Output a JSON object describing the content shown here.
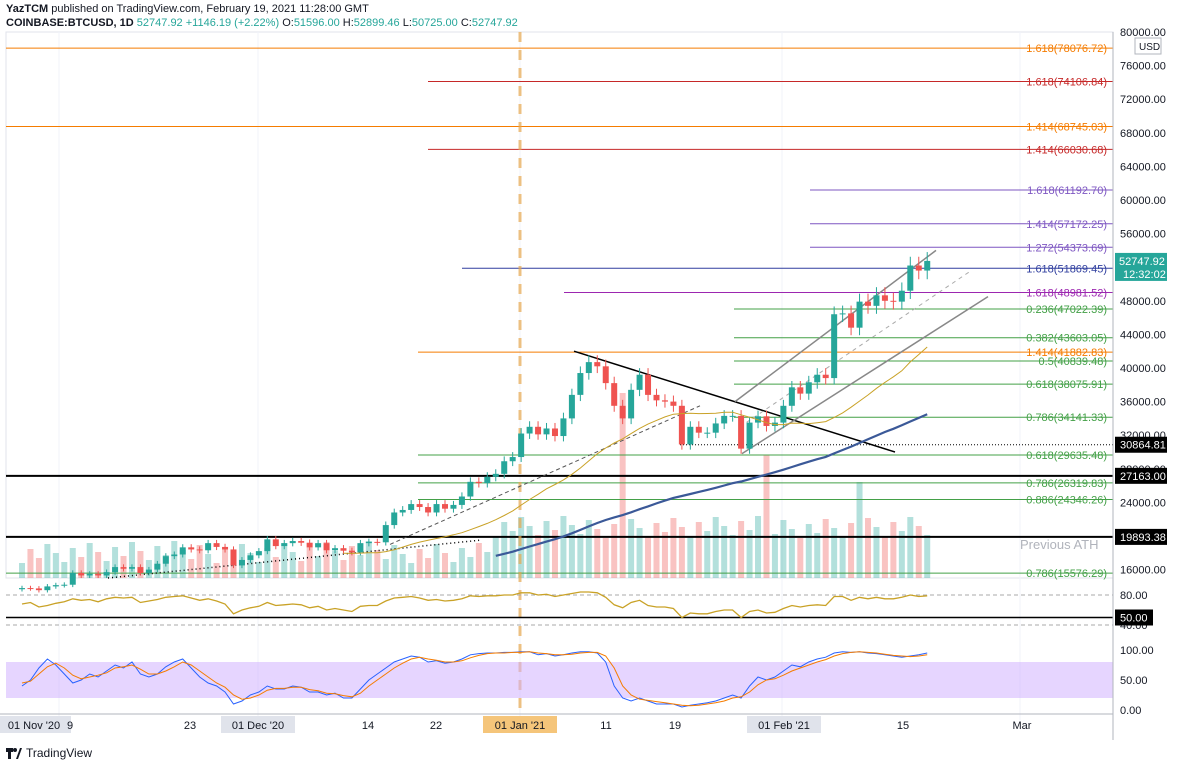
{
  "header": {
    "publisher": "YazTCM",
    "published_text": " published on TradingView.com, February 19, 2021 11:28:00 GMT",
    "symbol": "COINBASE:BTCUSD, 1D",
    "price": "52747.92",
    "change": "+1146.19 (+2.22%)",
    "ohlc_o": "51596.00",
    "ohlc_h": "52899.46",
    "ohlc_l": "50725.00",
    "ohlc_c": "52747.92"
  },
  "brand": "TradingView",
  "annotation_prev_ath": "Previous ATH",
  "colors": {
    "up": "#26a69a",
    "down": "#ef5350",
    "orange": "#f57c00",
    "purple": "#9c27b0",
    "green": "#4caf50",
    "red": "#c62828",
    "stoch": "#d1b3ff"
  },
  "chart_data": {
    "type": "candlestick",
    "currency": "USD",
    "y_axis_ticks": [
      "80000.00",
      "76000.00",
      "72000.00",
      "68000.00",
      "64000.00",
      "60000.00",
      "56000.00",
      "52000.00",
      "48000.00",
      "44000.00",
      "40000.00",
      "36000.00",
      "32000.00",
      "28000.00",
      "24000.00",
      "20000.00",
      "16000.00"
    ],
    "ylim": [
      15000,
      80000
    ],
    "x_axis_labels": [
      "01 Nov '20",
      "9",
      "23",
      "01 Dec '20",
      "14",
      "22",
      "01 Jan '21",
      "11",
      "19",
      "01 Feb '21",
      "15",
      "Mar"
    ],
    "last_price_label": "52747.92",
    "countdown_label": "12:32:02",
    "price_levels": [
      {
        "label": "1.618(78076.72)",
        "value": 78076.72,
        "color": "#f57c00"
      },
      {
        "label": "1.618(74106.84)",
        "value": 74106.84,
        "color": "#c62828"
      },
      {
        "label": "1.414(68745.03)",
        "value": 68745.03,
        "color": "#f57c00"
      },
      {
        "label": "1.414(66030.68)",
        "value": 66030.68,
        "color": "#c62828"
      },
      {
        "label": "1.618(61192.70)",
        "value": 61192.7,
        "color": "#7e57c2"
      },
      {
        "label": "1.414(57172.25)",
        "value": 57172.25,
        "color": "#7e57c2"
      },
      {
        "label": "1.272(54373.69)",
        "value": 54373.69,
        "color": "#7e57c2"
      },
      {
        "label": "1.618(51869.45)",
        "value": 51869.45,
        "color": "#303f9f"
      },
      {
        "label": "1.618(48981.52)",
        "value": 48981.52,
        "color": "#9c27b0"
      },
      {
        "label": "0.236(47022.39)",
        "value": 47022.39,
        "color": "#43a047"
      },
      {
        "label": "0.382(43603.05)",
        "value": 43603.05,
        "color": "#43a047"
      },
      {
        "label": "1.414(41882.83)",
        "value": 41882.83,
        "color": "#f57c00"
      },
      {
        "label": "0.5(40839.48)",
        "value": 40839.48,
        "color": "#43a047"
      },
      {
        "label": "0.618(38075.91)",
        "value": 38075.91,
        "color": "#43a047"
      },
      {
        "label": "0.786(34141.33)",
        "value": 34141.33,
        "color": "#43a047"
      },
      {
        "label": "0.618(29635.48)",
        "value": 29635.48,
        "color": "#43a047"
      },
      {
        "label": "0.786(26319.83)",
        "value": 26319.83,
        "color": "#43a047"
      },
      {
        "label": "0.886(24346.26)",
        "value": 24346.26,
        "color": "#43a047"
      },
      {
        "label": "0.786(15576.29)",
        "value": 15576.29,
        "color": "#43a047"
      }
    ],
    "boxed_levels": [
      {
        "label": "30864.81",
        "value": 30864.81
      },
      {
        "label": "27163.00",
        "value": 27163.0
      },
      {
        "label": "19893.38",
        "value": 19893.38
      }
    ],
    "closes": [
      13800,
      13760,
      13550,
      14000,
      14150,
      14200,
      15600,
      15300,
      15500,
      15300,
      15700,
      16300,
      16100,
      16300,
      15600,
      16000,
      16700,
      17600,
      17800,
      18650,
      18400,
      18300,
      19150,
      18700,
      18400,
      16500,
      17150,
      17700,
      18200,
      19600,
      18800,
      19150,
      19400,
      19200,
      18650,
      19150,
      18300,
      18550,
      18250,
      18050,
      19150,
      19300,
      19250,
      21300,
      22800,
      23100,
      23800,
      23450,
      22800,
      23800,
      23250,
      23700,
      24700,
      26450,
      26300,
      27050,
      27400,
      28900,
      29400,
      32200,
      33000,
      32100,
      32800,
      31900,
      34000,
      36800,
      39400,
      40700,
      40200,
      38200,
      35500,
      34000,
      37400,
      39200,
      36800,
      36150,
      36000,
      35500,
      30900,
      33000,
      32300,
      32300,
      33400,
      34300,
      34300,
      30400,
      33500,
      34250,
      33100,
      33500,
      35500,
      37700,
      36950,
      38300,
      39200,
      38800,
      46400,
      46500,
      44800,
      47900,
      47400,
      48650,
      48000,
      47900,
      49200,
      52200,
      51600,
      52747
    ]
  },
  "rsi": {
    "levels_axis": [
      "80.00",
      "40.00"
    ],
    "boxed_label": "50.00",
    "values": [
      68,
      70,
      64,
      66,
      69,
      71,
      75,
      73,
      74,
      71,
      75,
      77,
      76,
      77,
      70,
      72,
      74,
      77,
      78,
      79,
      76,
      73,
      75,
      72,
      68,
      55,
      60,
      63,
      65,
      70,
      66,
      67,
      68,
      67,
      63,
      65,
      60,
      62,
      60,
      58,
      65,
      66,
      66,
      72,
      76,
      77,
      78,
      76,
      73,
      74,
      72,
      73,
      75,
      79,
      78,
      79,
      79,
      80,
      80,
      83,
      83,
      80,
      81,
      78,
      80,
      82,
      84,
      84,
      83,
      77,
      67,
      63,
      70,
      73,
      66,
      64,
      64,
      62,
      50,
      56,
      55,
      55,
      58,
      60,
      60,
      50,
      58,
      60,
      56,
      57,
      62,
      66,
      64,
      66,
      67,
      66,
      78,
      78,
      73,
      77,
      75,
      77,
      75,
      75,
      77,
      80,
      78,
      79
    ]
  },
  "stoch": {
    "levels_axis": [
      "100.00",
      "50.00",
      "0.00"
    ],
    "k": [
      40,
      50,
      70,
      85,
      75,
      60,
      45,
      50,
      60,
      55,
      65,
      75,
      70,
      80,
      60,
      55,
      60,
      72,
      80,
      85,
      70,
      55,
      45,
      40,
      30,
      10,
      15,
      25,
      30,
      40,
      35,
      35,
      40,
      38,
      30,
      30,
      25,
      28,
      20,
      20,
      35,
      50,
      60,
      70,
      80,
      85,
      90,
      88,
      80,
      82,
      78,
      80,
      85,
      92,
      94,
      95,
      95,
      96,
      96,
      97,
      97,
      92,
      94,
      90,
      92,
      95,
      97,
      97,
      95,
      80,
      40,
      20,
      15,
      20,
      15,
      10,
      10,
      10,
      5,
      8,
      10,
      12,
      15,
      20,
      25,
      20,
      40,
      55,
      50,
      55,
      65,
      75,
      72,
      80,
      85,
      88,
      95,
      97,
      96,
      97,
      95,
      94,
      92,
      90,
      88,
      90,
      92,
      95
    ],
    "d": [
      45,
      48,
      60,
      72,
      78,
      70,
      58,
      52,
      55,
      58,
      62,
      70,
      72,
      75,
      68,
      60,
      60,
      65,
      72,
      80,
      75,
      65,
      55,
      45,
      38,
      25,
      18,
      20,
      25,
      33,
      36,
      36,
      38,
      38,
      34,
      32,
      28,
      27,
      24,
      22,
      28,
      40,
      50,
      60,
      70,
      78,
      85,
      88,
      85,
      83,
      80,
      80,
      82,
      87,
      91,
      94,
      95,
      95,
      96,
      96,
      97,
      95,
      94,
      92,
      92,
      93,
      95,
      96,
      96,
      90,
      70,
      40,
      25,
      18,
      16,
      14,
      12,
      10,
      8,
      7,
      8,
      10,
      12,
      15,
      20,
      22,
      30,
      42,
      50,
      52,
      58,
      65,
      70,
      75,
      80,
      84,
      90,
      94,
      96,
      97,
      96,
      95,
      93,
      91,
      90,
      89,
      90,
      92
    ]
  }
}
